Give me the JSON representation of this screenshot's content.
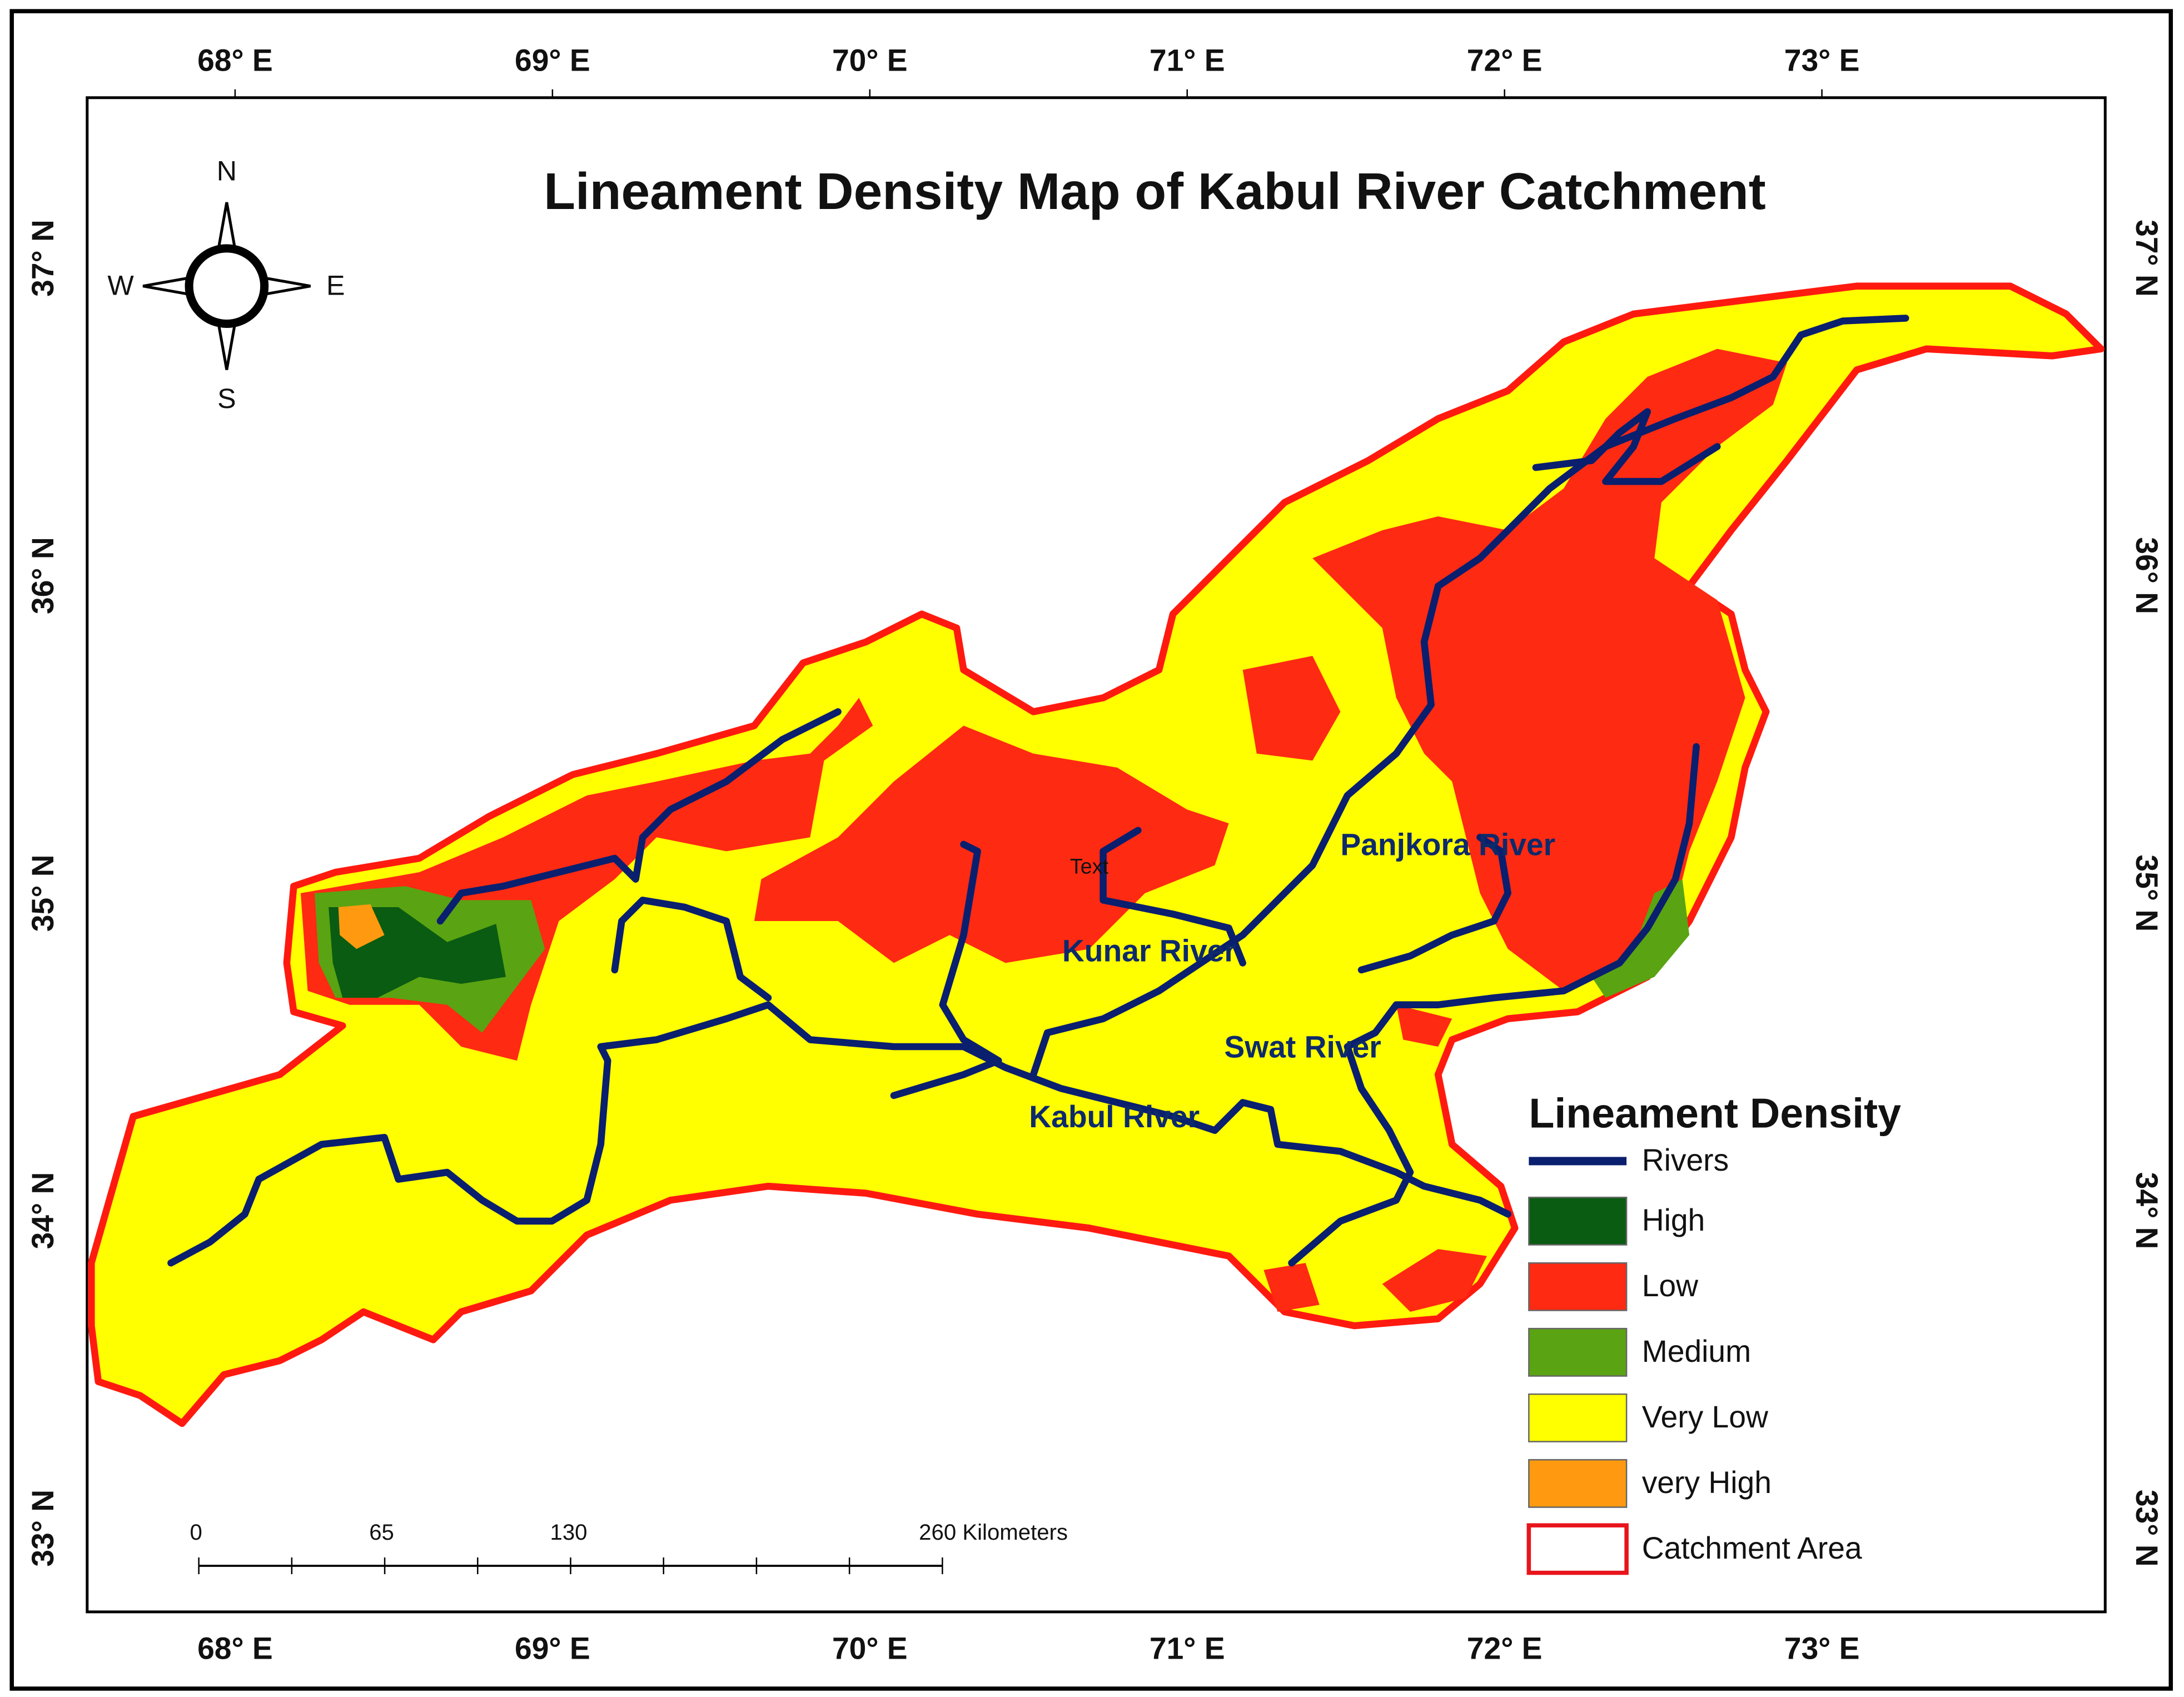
{
  "title": "Lineament Density Map of Kabul River Catchment",
  "longitude_labels": [
    "68° E",
    "69° E",
    "70° E",
    "71° E",
    "72° E",
    "73° E"
  ],
  "latitude_labels": [
    "33° N",
    "34° N",
    "35° N",
    "36° N",
    "37° N"
  ],
  "compass": {
    "n": "N",
    "s": "S",
    "e": "E",
    "w": "W"
  },
  "river_labels": [
    "Panjkora River",
    "Kunar River",
    "Swat River",
    "Kabul River"
  ],
  "stray_label": "Text",
  "legend": {
    "title": "Lineament Density",
    "items": [
      {
        "label": "Rivers",
        "color": "#0a1f6e",
        "kind": "line"
      },
      {
        "label": "High",
        "color": "#0a5c12",
        "kind": "fill"
      },
      {
        "label": "Low",
        "color": "#ff2a12",
        "kind": "fill"
      },
      {
        "label": "Medium",
        "color": "#5aa312",
        "kind": "fill"
      },
      {
        "label": "Very Low",
        "color": "#ffff00",
        "kind": "fill"
      },
      {
        "label": "very High",
        "color": "#ff9a10",
        "kind": "fill"
      },
      {
        "label": "Catchment Area",
        "color": "#e8141c",
        "kind": "outline"
      }
    ]
  },
  "scale_bar": {
    "labels": [
      "0",
      "65",
      "130",
      "260 Kilometers"
    ]
  }
}
